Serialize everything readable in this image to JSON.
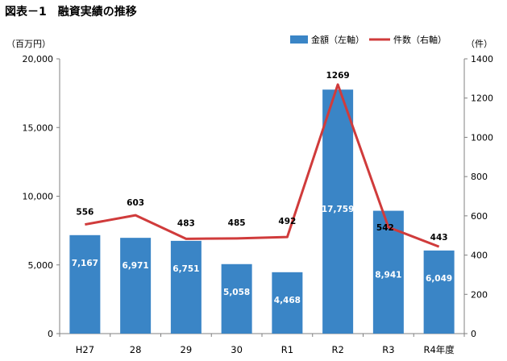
{
  "title": "図表－1　融資実績の推移",
  "colors": {
    "bar": "#3a85c6",
    "line": "#d03b3b",
    "axis": "#808080"
  },
  "chart_data": {
    "type": "bar",
    "combo": "bar+line",
    "categories": [
      "H27",
      "28",
      "29",
      "30",
      "R1",
      "R2",
      "R3",
      "R4年度"
    ],
    "series": [
      {
        "name": "金額（左軸）",
        "type": "bar",
        "axis": "left",
        "values": [
          7167,
          6971,
          6751,
          5058,
          4468,
          17759,
          8941,
          6049
        ],
        "labels": [
          "7,167",
          "6,971",
          "6,751",
          "5,058",
          "4,468",
          "17,759",
          "8,941",
          "6,049"
        ]
      },
      {
        "name": "件数（右軸）",
        "type": "line",
        "axis": "right",
        "values": [
          556,
          603,
          483,
          485,
          492,
          1269,
          542,
          443
        ],
        "labels": [
          "556",
          "603",
          "483",
          "485",
          "492",
          "1269",
          "542",
          "443"
        ]
      }
    ],
    "left_axis": {
      "unit": "（百万円）",
      "ylim": [
        0,
        20000
      ],
      "ticks": [
        0,
        5000,
        10000,
        15000,
        20000
      ],
      "tick_labels": [
        "0",
        "5,000",
        "10,000",
        "15,000",
        "20,000"
      ]
    },
    "right_axis": {
      "unit": "（件）",
      "ylim": [
        0,
        1400
      ],
      "ticks": [
        0,
        200,
        400,
        600,
        800,
        1000,
        1200,
        1400
      ],
      "tick_labels": [
        "0",
        "200",
        "400",
        "600",
        "800",
        "1000",
        "1200",
        "1400"
      ]
    },
    "legend": "top-right",
    "grid": false
  }
}
